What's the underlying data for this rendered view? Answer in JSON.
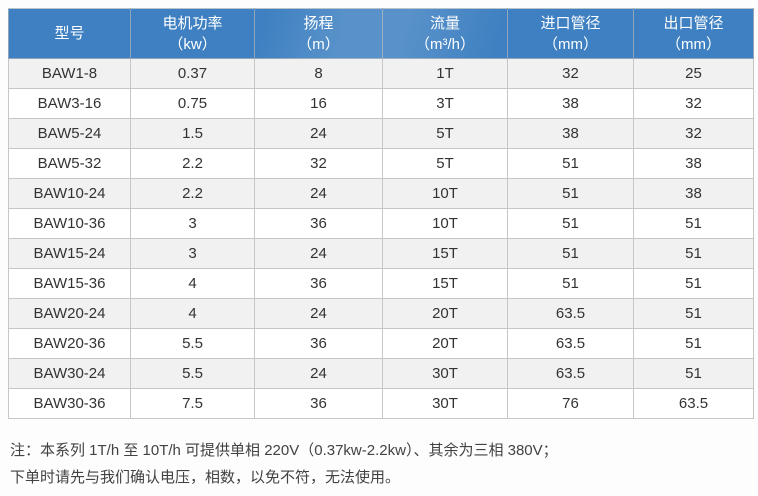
{
  "colors": {
    "header_bg": "#3e80c1",
    "header_text": "#ffffff",
    "row_stripe_bg": "#f1f1f2",
    "row_bg": "#ffffff",
    "border": "#c6c6c6",
    "cell_text": "#333333",
    "note_text": "#424242"
  },
  "table": {
    "columns": [
      {
        "label": "型号",
        "unit": ""
      },
      {
        "label": "电机功率",
        "unit": "（kw）"
      },
      {
        "label": "扬程",
        "unit": "（m）"
      },
      {
        "label": "流量",
        "unit": "（m³/h）"
      },
      {
        "label": "进口管径",
        "unit": "（mm）"
      },
      {
        "label": "出口管径",
        "unit": "（mm）"
      }
    ],
    "rows": [
      [
        "BAW1-8",
        "0.37",
        "8",
        "1T",
        "32",
        "25"
      ],
      [
        "BAW3-16",
        "0.75",
        "16",
        "3T",
        "38",
        "32"
      ],
      [
        "BAW5-24",
        "1.5",
        "24",
        "5T",
        "38",
        "32"
      ],
      [
        "BAW5-32",
        "2.2",
        "32",
        "5T",
        "51",
        "38"
      ],
      [
        "BAW10-24",
        "2.2",
        "24",
        "10T",
        "51",
        "38"
      ],
      [
        "BAW10-36",
        "3",
        "36",
        "10T",
        "51",
        "51"
      ],
      [
        "BAW15-24",
        "3",
        "24",
        "15T",
        "51",
        "51"
      ],
      [
        "BAW15-36",
        "4",
        "36",
        "15T",
        "51",
        "51"
      ],
      [
        "BAW20-24",
        "4",
        "24",
        "20T",
        "63.5",
        "51"
      ],
      [
        "BAW20-36",
        "5.5",
        "36",
        "20T",
        "63.5",
        "51"
      ],
      [
        "BAW30-24",
        "5.5",
        "24",
        "30T",
        "63.5",
        "51"
      ],
      [
        "BAW30-36",
        "7.5",
        "36",
        "30T",
        "76",
        "63.5"
      ]
    ]
  },
  "note": {
    "line1": "注：本系列 1T/h 至 10T/h 可提供单相 220V（0.37kw-2.2kw）、其余为三相 380V；",
    "line2": "下单时请先与我们确认电压，相数，以免不符，无法使用。"
  }
}
